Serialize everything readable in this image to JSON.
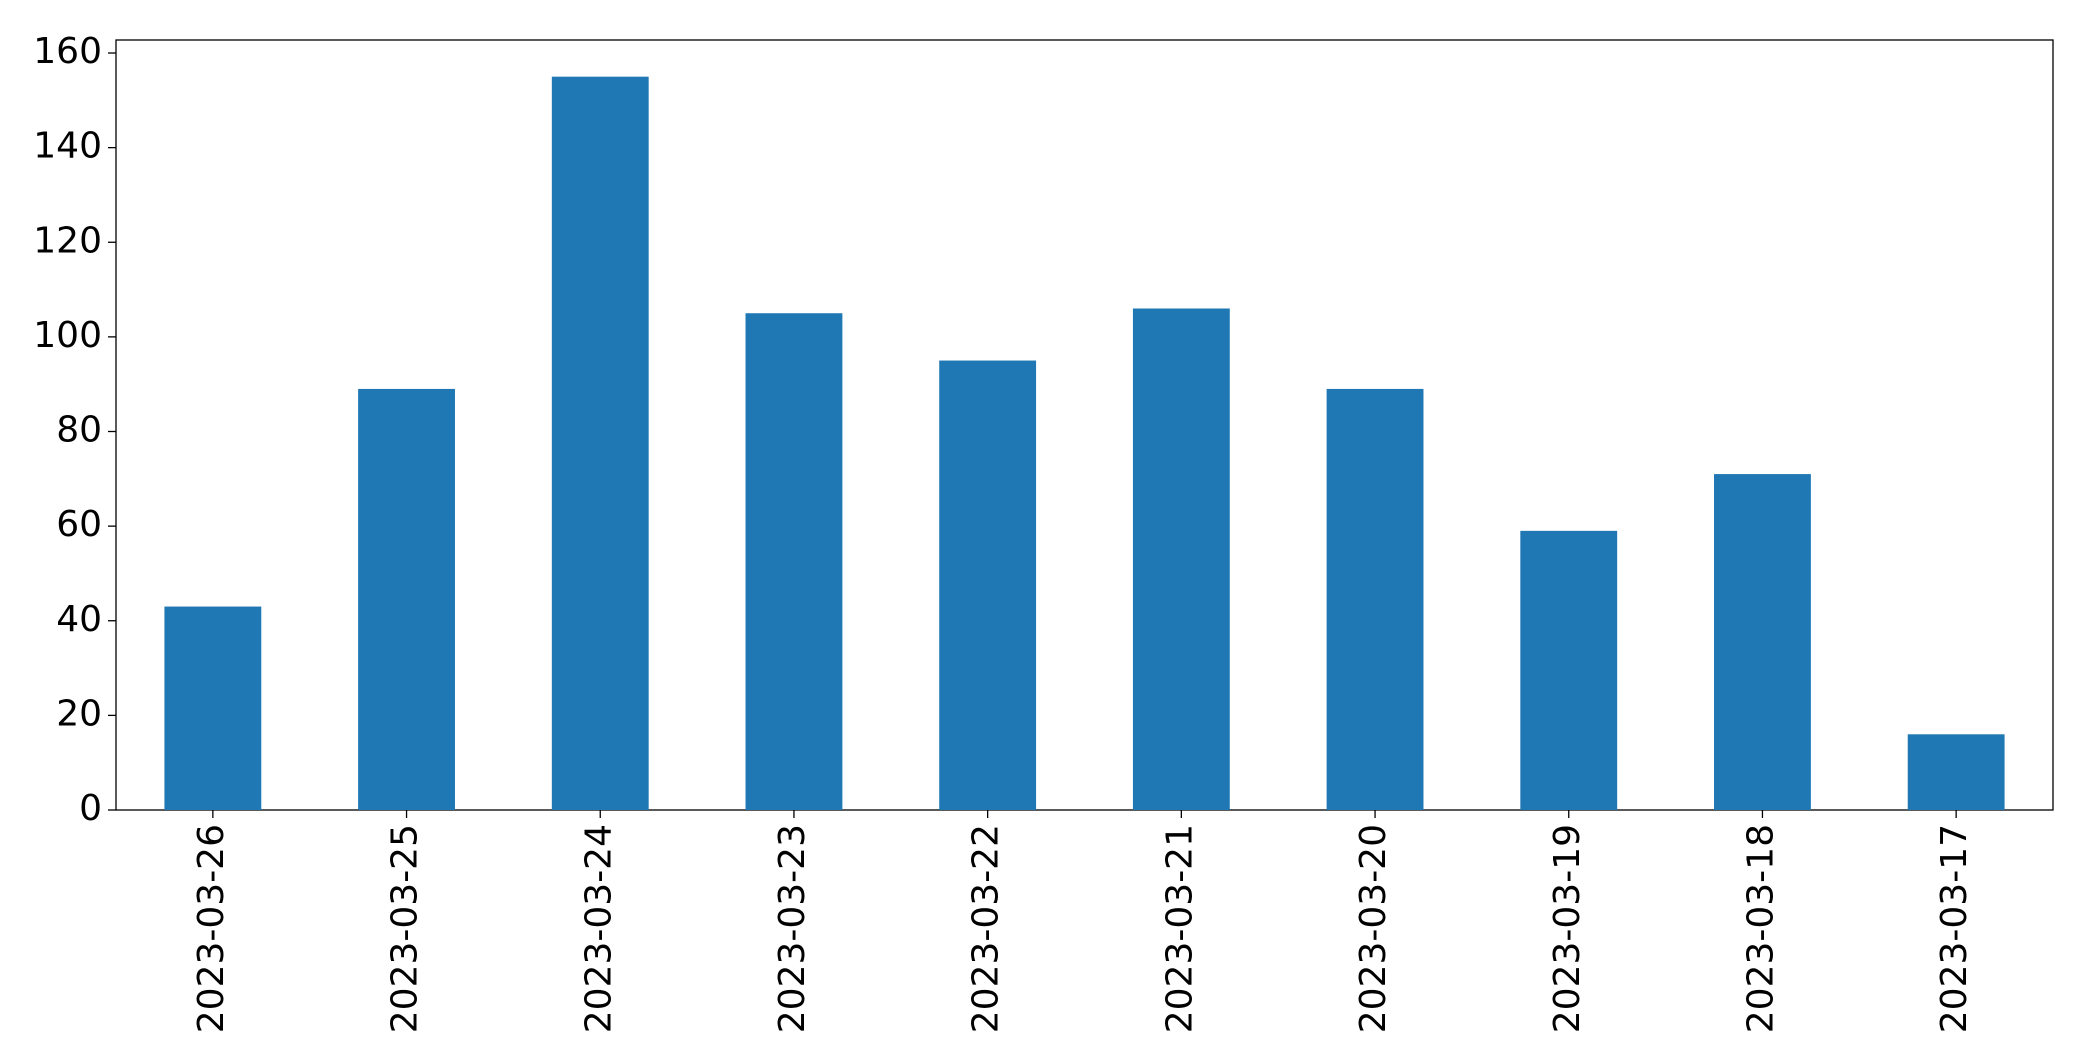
{
  "chart_data": {
    "type": "bar",
    "categories": [
      "2023-03-26",
      "2023-03-25",
      "2023-03-24",
      "2023-03-23",
      "2023-03-22",
      "2023-03-21",
      "2023-03-20",
      "2023-03-19",
      "2023-03-18",
      "2023-03-17"
    ],
    "values": [
      43,
      89,
      155,
      105,
      95,
      106,
      89,
      59,
      71,
      16
    ],
    "color": "#1f77b4",
    "ylim": [
      0,
      162.75
    ],
    "yticks": [
      0,
      20,
      40,
      60,
      80,
      100,
      120,
      140,
      160
    ],
    "grid": false
  }
}
